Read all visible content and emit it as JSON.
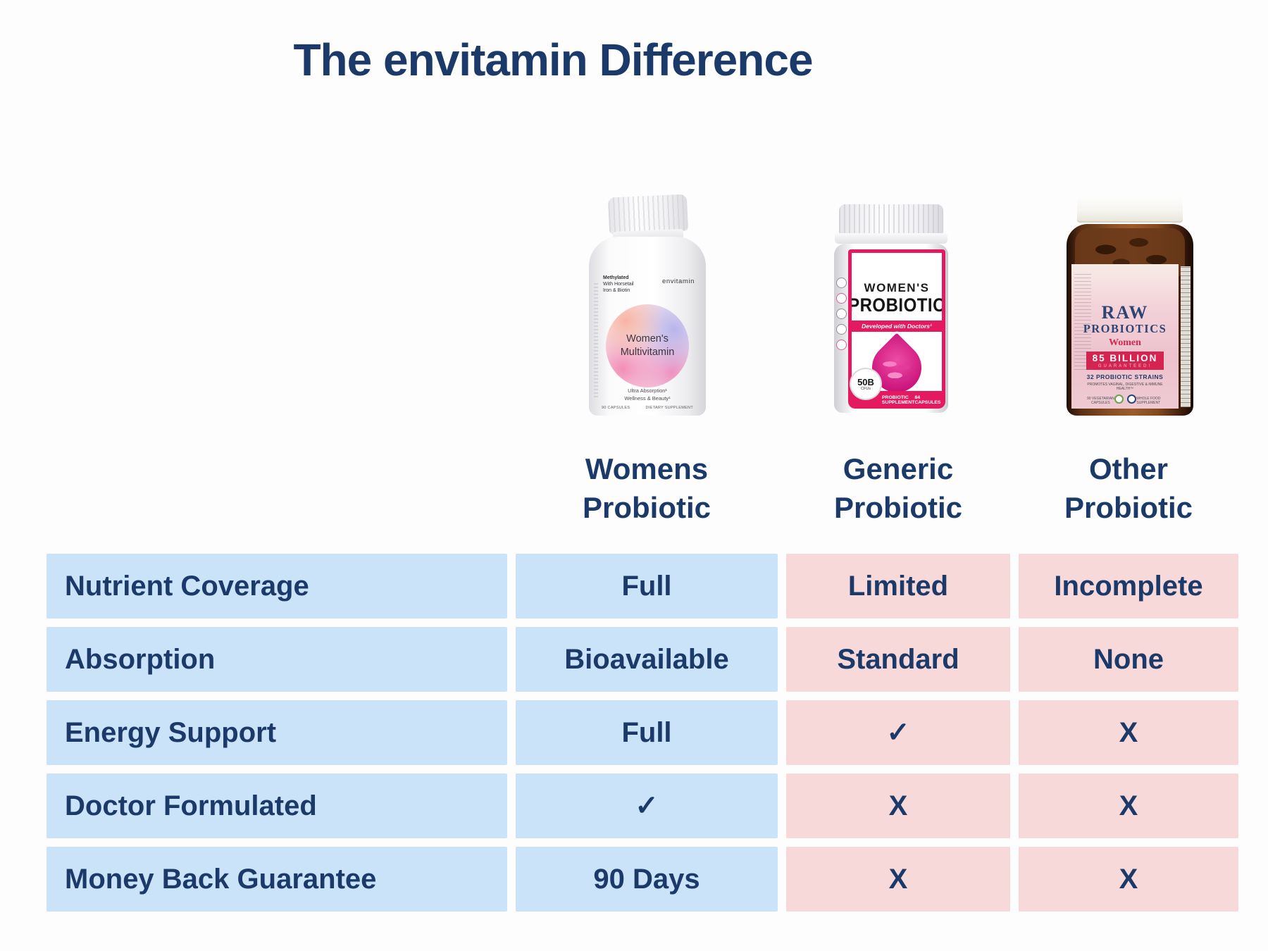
{
  "title": "The envitamin Difference",
  "colors": {
    "navy_text": "#1B3A69",
    "cell_blue": "#CAE3F8",
    "cell_pink": "#F7D9D9",
    "brand_magenta": "#E5195F",
    "raw_crimson": "#D6234F",
    "amber_bottle": "#8A5126"
  },
  "columns": [
    {
      "line1": "Womens",
      "line2": "Probiotic"
    },
    {
      "line1": "Generic",
      "line2": "Probiotic"
    },
    {
      "line1": "Other",
      "line2": "Probiotic"
    }
  ],
  "products": {
    "envitamin": {
      "brand": "envitamin",
      "feature1": "Methylated",
      "feature2": "With Horsetail",
      "feature3": "Iron & Biotin",
      "name_line1": "Women's",
      "name_line2": "Multivitamin",
      "benefit1": "Ultra Absorption¹",
      "benefit2": "Wellness & Beauty¹",
      "count": "90 CAPSULES",
      "type": "DIETARY SUPPLEMENT"
    },
    "generic": {
      "name_line1": "WOMEN'S",
      "name_line2": "PROBIOTIC",
      "tagline": "Developed with Doctors¹",
      "badge_value": "50B",
      "badge_unit": "CFUs",
      "supplement": "PROBIOTIC SUPPLEMENT",
      "count": "84 CAPSULES"
    },
    "other": {
      "brand_line1": "RAW",
      "brand_line2": "PROBIOTICS",
      "variant": "Women",
      "claim_line1": "85 BILLION",
      "claim_line2": "GUARANTEED!",
      "strains": "32 PROBIOTIC STRAINS",
      "promise": "PROMOTES VAGINAL, DIGESTIVE & IMMUNE HEALTH™",
      "count": "90 VEGETARIAN CAPSULES",
      "type": "WHOLE FOOD SUPPLEMENT"
    }
  },
  "chart_data": {
    "type": "table",
    "title": "The envitamin Difference",
    "columns": [
      "",
      "Womens Probiotic",
      "Generic Probiotic",
      "Other Probiotic"
    ],
    "rows": [
      [
        "Nutrient Coverage",
        "Full",
        "Limited",
        "Incomplete"
      ],
      [
        "Absorption",
        "Bioavailable",
        "Standard",
        "None"
      ],
      [
        "Energy Support",
        "Full",
        "✓",
        "X"
      ],
      [
        "Doctor Formulated",
        "✓",
        "X",
        "X"
      ],
      [
        "Money Back Guarantee",
        "90 Days",
        "X",
        "X"
      ]
    ]
  }
}
